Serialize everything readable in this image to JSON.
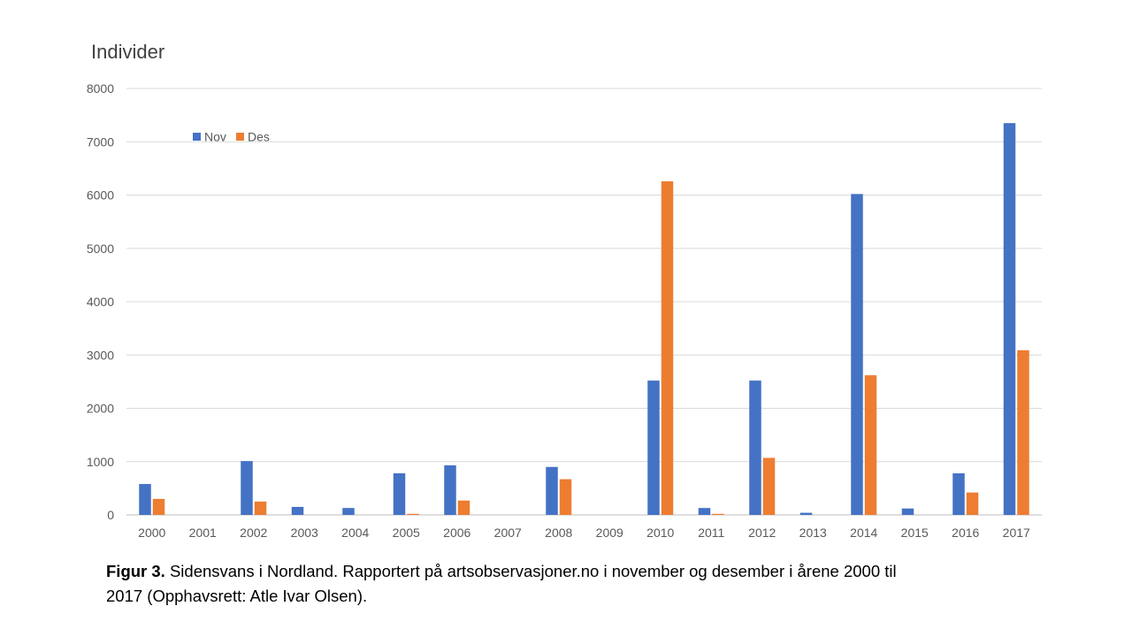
{
  "chart_data": {
    "type": "bar",
    "ylabel": "Individider",
    "categories": [
      "2000",
      "2001",
      "2002",
      "2003",
      "2004",
      "2005",
      "2006",
      "2007",
      "2008",
      "2009",
      "2010",
      "2011",
      "2012",
      "2013",
      "2014",
      "2015",
      "2016",
      "2017"
    ],
    "series": [
      {
        "name": "Nov",
        "color": "#4472C4",
        "values": [
          580,
          0,
          1010,
          150,
          130,
          780,
          930,
          0,
          900,
          0,
          2520,
          130,
          2520,
          40,
          6020,
          120,
          780,
          7350
        ]
      },
      {
        "name": "Des",
        "color": "#ED7D31",
        "values": [
          300,
          0,
          250,
          0,
          0,
          20,
          270,
          0,
          670,
          0,
          6260,
          20,
          1070,
          0,
          2620,
          0,
          420,
          3090
        ]
      }
    ],
    "ylim": [
      0,
      8000
    ],
    "yticks": [
      0,
      1000,
      2000,
      3000,
      4000,
      5000,
      6000,
      7000,
      8000
    ],
    "grid": true,
    "legend_position": "top-left"
  },
  "caption": {
    "label": "Figur 3.",
    "text": " Sidensvans i Nordland. Rapportert på artsobservasjoner.no i november og desember i årene 2000 til 2017 (Opphavsrett: Atle Ivar Olsen)."
  }
}
